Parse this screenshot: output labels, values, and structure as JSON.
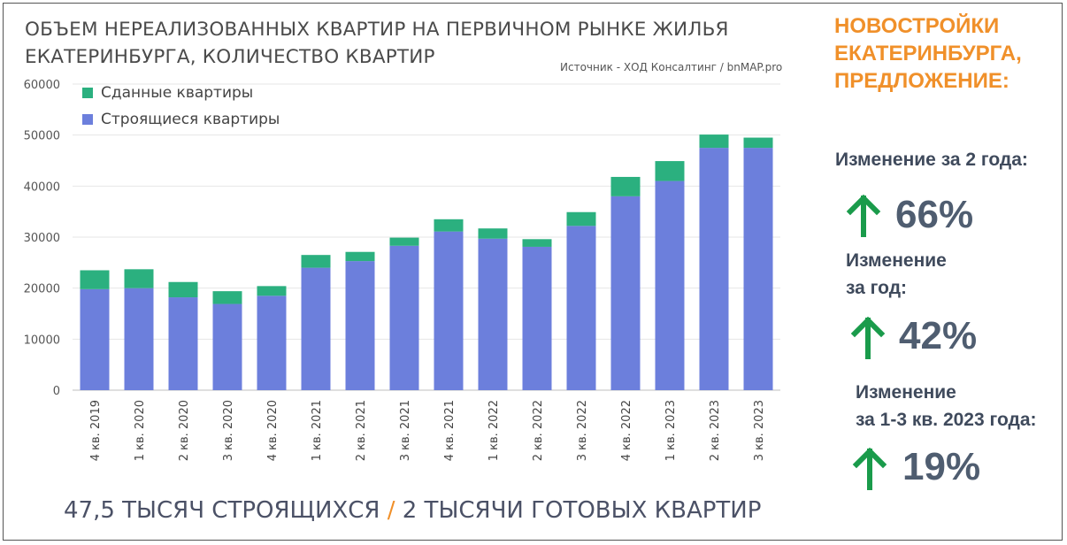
{
  "title_line1": "ОБЪЕМ НЕРЕАЛИЗОВАННЫХ КВАРТИР НА ПЕРВИЧНОМ РЫНКЕ ЖИЛЬЯ",
  "title_line2": "ЕКАТЕРИНБУРГА, КОЛИЧЕСТВО КВАРТИР",
  "source": "Источник - ХОД Консалтинг / bnMAP.pro",
  "chart_data": {
    "type": "bar",
    "stacked": true,
    "categories": [
      "4 кв. 2019",
      "1 кв. 2020",
      "2 кв. 2020",
      "3 кв. 2020",
      "4 кв. 2020",
      "1 кв. 2021",
      "2 кв. 2021",
      "3 кв. 2021",
      "4 кв. 2021",
      "1 кв. 2022",
      "2 кв. 2022",
      "3 кв. 2022",
      "4 кв. 2022",
      "1 кв. 2023",
      "2 кв. 2023",
      "3 кв. 2023"
    ],
    "series": [
      {
        "name": "Строящиеся квартиры",
        "color": "#6c7fdc",
        "values": [
          19800,
          20000,
          18200,
          16900,
          18500,
          24000,
          25300,
          28300,
          31100,
          29700,
          28100,
          32200,
          38000,
          41000,
          47500,
          47500
        ]
      },
      {
        "name": "Сданные квартиры",
        "color": "#2bb07f",
        "values": [
          3700,
          3700,
          3000,
          2500,
          1900,
          2500,
          1800,
          1600,
          2400,
          2000,
          1500,
          2700,
          3800,
          3900,
          2600,
          2000
        ]
      }
    ],
    "legend": [
      "Сданные квартиры",
      "Строящиеся квартиры"
    ],
    "yticks": [
      "0",
      "10000",
      "20000",
      "30000",
      "40000",
      "50000",
      "60000"
    ],
    "ylim": [
      0,
      60000
    ],
    "grid": true,
    "legend_position": "top-left"
  },
  "bottom_caption": {
    "part1": "47,5 ТЫСЯЧ СТРОЯЩИХСЯ ",
    "slash": "/",
    "part2": " 2 ТЫСЯЧИ ГОТОВЫХ КВАРТИР"
  },
  "side": {
    "title": "НОВОСТРОЙКИ ЕКАТЕРИНБУРГА, ПРЕДЛОЖЕНИЕ:",
    "arrow_color": "#1a9b4b",
    "changes": [
      {
        "label": "Изменение за 2 года:",
        "value": "66%"
      },
      {
        "label": "Изменение\nза год:",
        "value": "42%"
      },
      {
        "label": "Изменение\nза 1-3 кв. 2023 года:",
        "value": "19%"
      }
    ]
  }
}
